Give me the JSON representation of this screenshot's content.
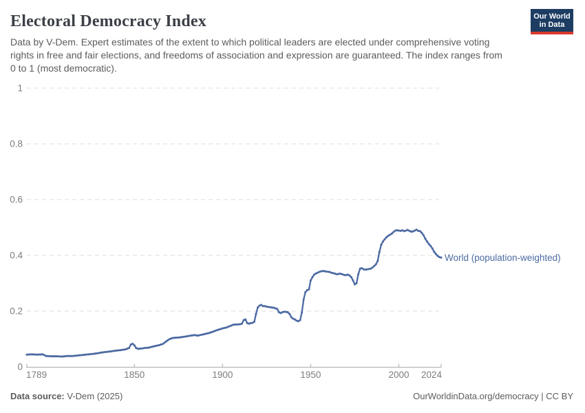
{
  "header": {
    "title": "Electoral Democracy Index",
    "subtitle": "Data by V-Dem. Expert estimates of the extent to which political leaders are elected under comprehensive voting rights in free and fair elections, and freedoms of association and expression are guaranteed. The index ranges from 0 to 1 (most democratic).",
    "logo": {
      "line1": "Our World",
      "line2": "in Data",
      "bg_color": "#1d3d63",
      "accent_color": "#d93a2d"
    }
  },
  "chart_data": {
    "type": "line",
    "title": "Electoral Democracy Index",
    "xlabel": "",
    "ylabel": "",
    "xlim": [
      1789,
      2024
    ],
    "ylim": [
      0,
      1
    ],
    "x_ticks": [
      1789,
      1850,
      1900,
      1950,
      2000,
      2024
    ],
    "y_ticks": [
      0,
      0.2,
      0.4,
      0.6,
      0.8,
      1
    ],
    "grid": "horizontal-dashed",
    "legend_position": "end-of-line-label",
    "colors": {
      "gridline": "#dcdcdc",
      "axis": "#ababab",
      "tick_label": "#7d7d7d"
    },
    "series": [
      {
        "name": "World (population-weighted)",
        "color": "#4c6aa2",
        "points": [
          [
            1789,
            0.044
          ],
          [
            1792,
            0.045
          ],
          [
            1795,
            0.044
          ],
          [
            1798,
            0.045
          ],
          [
            1800,
            0.039
          ],
          [
            1803,
            0.038
          ],
          [
            1806,
            0.038
          ],
          [
            1809,
            0.037
          ],
          [
            1812,
            0.039
          ],
          [
            1815,
            0.039
          ],
          [
            1818,
            0.041
          ],
          [
            1821,
            0.043
          ],
          [
            1824,
            0.045
          ],
          [
            1827,
            0.047
          ],
          [
            1830,
            0.05
          ],
          [
            1833,
            0.053
          ],
          [
            1836,
            0.055
          ],
          [
            1839,
            0.058
          ],
          [
            1842,
            0.06
          ],
          [
            1845,
            0.063
          ],
          [
            1847,
            0.068
          ],
          [
            1848,
            0.08
          ],
          [
            1849,
            0.083
          ],
          [
            1850,
            0.077
          ],
          [
            1851,
            0.068
          ],
          [
            1852,
            0.065
          ],
          [
            1854,
            0.066
          ],
          [
            1856,
            0.068
          ],
          [
            1858,
            0.069
          ],
          [
            1860,
            0.072
          ],
          [
            1862,
            0.075
          ],
          [
            1864,
            0.078
          ],
          [
            1866,
            0.082
          ],
          [
            1868,
            0.091
          ],
          [
            1870,
            0.1
          ],
          [
            1872,
            0.104
          ],
          [
            1874,
            0.105
          ],
          [
            1876,
            0.106
          ],
          [
            1878,
            0.108
          ],
          [
            1880,
            0.11
          ],
          [
            1882,
            0.112
          ],
          [
            1884,
            0.114
          ],
          [
            1886,
            0.112
          ],
          [
            1888,
            0.115
          ],
          [
            1890,
            0.118
          ],
          [
            1892,
            0.121
          ],
          [
            1894,
            0.125
          ],
          [
            1896,
            0.13
          ],
          [
            1898,
            0.134
          ],
          [
            1900,
            0.138
          ],
          [
            1902,
            0.141
          ],
          [
            1904,
            0.146
          ],
          [
            1906,
            0.151
          ],
          [
            1908,
            0.152
          ],
          [
            1910,
            0.153
          ],
          [
            1911,
            0.155
          ],
          [
            1912,
            0.168
          ],
          [
            1913,
            0.17
          ],
          [
            1914,
            0.157
          ],
          [
            1915,
            0.155
          ],
          [
            1916,
            0.157
          ],
          [
            1917,
            0.158
          ],
          [
            1918,
            0.162
          ],
          [
            1919,
            0.19
          ],
          [
            1920,
            0.213
          ],
          [
            1921,
            0.22
          ],
          [
            1922,
            0.222
          ],
          [
            1923,
            0.218
          ],
          [
            1924,
            0.218
          ],
          [
            1925,
            0.216
          ],
          [
            1926,
            0.215
          ],
          [
            1927,
            0.214
          ],
          [
            1928,
            0.213
          ],
          [
            1929,
            0.212
          ],
          [
            1930,
            0.21
          ],
          [
            1931,
            0.208
          ],
          [
            1932,
            0.196
          ],
          [
            1933,
            0.193
          ],
          [
            1934,
            0.196
          ],
          [
            1935,
            0.198
          ],
          [
            1936,
            0.197
          ],
          [
            1937,
            0.196
          ],
          [
            1938,
            0.19
          ],
          [
            1939,
            0.178
          ],
          [
            1940,
            0.173
          ],
          [
            1941,
            0.17
          ],
          [
            1942,
            0.166
          ],
          [
            1943,
            0.164
          ],
          [
            1944,
            0.168
          ],
          [
            1945,
            0.195
          ],
          [
            1946,
            0.242
          ],
          [
            1947,
            0.268
          ],
          [
            1948,
            0.275
          ],
          [
            1949,
            0.278
          ],
          [
            1950,
            0.31
          ],
          [
            1951,
            0.322
          ],
          [
            1952,
            0.331
          ],
          [
            1953,
            0.335
          ],
          [
            1954,
            0.338
          ],
          [
            1955,
            0.341
          ],
          [
            1956,
            0.343
          ],
          [
            1957,
            0.344
          ],
          [
            1958,
            0.343
          ],
          [
            1959,
            0.342
          ],
          [
            1960,
            0.341
          ],
          [
            1961,
            0.34
          ],
          [
            1962,
            0.337
          ],
          [
            1963,
            0.336
          ],
          [
            1964,
            0.334
          ],
          [
            1965,
            0.332
          ],
          [
            1966,
            0.334
          ],
          [
            1967,
            0.334
          ],
          [
            1968,
            0.332
          ],
          [
            1969,
            0.33
          ],
          [
            1970,
            0.329
          ],
          [
            1971,
            0.331
          ],
          [
            1972,
            0.328
          ],
          [
            1973,
            0.322
          ],
          [
            1974,
            0.31
          ],
          [
            1975,
            0.296
          ],
          [
            1976,
            0.3
          ],
          [
            1977,
            0.332
          ],
          [
            1978,
            0.352
          ],
          [
            1979,
            0.354
          ],
          [
            1980,
            0.35
          ],
          [
            1981,
            0.349
          ],
          [
            1982,
            0.35
          ],
          [
            1983,
            0.351
          ],
          [
            1984,
            0.352
          ],
          [
            1985,
            0.356
          ],
          [
            1986,
            0.362
          ],
          [
            1987,
            0.368
          ],
          [
            1988,
            0.38
          ],
          [
            1989,
            0.412
          ],
          [
            1990,
            0.438
          ],
          [
            1991,
            0.45
          ],
          [
            1992,
            0.458
          ],
          [
            1993,
            0.465
          ],
          [
            1994,
            0.47
          ],
          [
            1995,
            0.474
          ],
          [
            1996,
            0.478
          ],
          [
            1997,
            0.484
          ],
          [
            1998,
            0.489
          ],
          [
            1999,
            0.49
          ],
          [
            2000,
            0.489
          ],
          [
            2001,
            0.488
          ],
          [
            2002,
            0.49
          ],
          [
            2003,
            0.487
          ],
          [
            2004,
            0.489
          ],
          [
            2005,
            0.491
          ],
          [
            2006,
            0.488
          ],
          [
            2007,
            0.485
          ],
          [
            2008,
            0.486
          ],
          [
            2009,
            0.489
          ],
          [
            2010,
            0.492
          ],
          [
            2011,
            0.488
          ],
          [
            2012,
            0.487
          ],
          [
            2013,
            0.481
          ],
          [
            2014,
            0.472
          ],
          [
            2015,
            0.46
          ],
          [
            2016,
            0.45
          ],
          [
            2017,
            0.441
          ],
          [
            2018,
            0.434
          ],
          [
            2019,
            0.425
          ],
          [
            2020,
            0.413
          ],
          [
            2021,
            0.405
          ],
          [
            2022,
            0.398
          ],
          [
            2023,
            0.394
          ],
          [
            2024,
            0.392
          ]
        ]
      }
    ]
  },
  "footer": {
    "source_label": "Data source:",
    "source_value": " V-Dem (2025)",
    "credit": "OurWorldinData.org/democracy | CC BY"
  }
}
